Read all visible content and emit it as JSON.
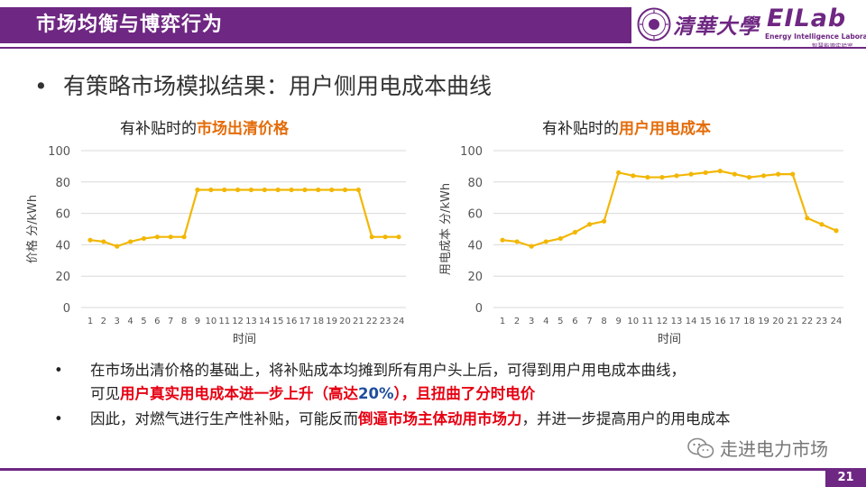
{
  "header": {
    "title": "市场均衡与博弈行为",
    "logo_text": "清華大學",
    "lab_logo": "EILab",
    "lab_name_en": "Energy Intelligence Laboratory",
    "lab_name_cn": "智慧能源实验室"
  },
  "main_bullet": "有策略市场模拟结果：用户侧用电成本曲线",
  "charts": [
    {
      "title_prefix": "有补贴时的",
      "title_highlight": "市场出清价格",
      "ylabel": "价格 分/kWh",
      "xlabel": "时间"
    },
    {
      "title_prefix": "有补贴时的",
      "title_highlight": "用户用电成本",
      "ylabel": "用电成本 分/kWh",
      "xlabel": "时间"
    }
  ],
  "chart_data": [
    {
      "type": "line",
      "x": [
        1,
        2,
        3,
        4,
        5,
        6,
        7,
        8,
        9,
        10,
        11,
        12,
        13,
        14,
        15,
        16,
        17,
        18,
        19,
        20,
        21,
        22,
        23,
        24
      ],
      "series": [
        {
          "values": [
            43,
            42,
            39,
            42,
            44,
            45,
            45,
            45,
            75,
            75,
            75,
            75,
            75,
            75,
            75,
            75,
            75,
            75,
            75,
            75,
            75,
            45,
            45,
            45
          ],
          "color": "#f2b705"
        }
      ],
      "ylim": [
        0,
        100
      ],
      "yticks": [
        0,
        20,
        40,
        60,
        80,
        100
      ],
      "grid": true,
      "title": "有补贴时的市场出清价格",
      "xlabel": "时间",
      "ylabel": "价格 分/kWh"
    },
    {
      "type": "line",
      "x": [
        1,
        2,
        3,
        4,
        5,
        6,
        7,
        8,
        9,
        10,
        11,
        12,
        13,
        14,
        15,
        16,
        17,
        18,
        19,
        20,
        21,
        22,
        23,
        24
      ],
      "series": [
        {
          "values": [
            43,
            42,
            39,
            42,
            44,
            48,
            53,
            55,
            86,
            84,
            83,
            83,
            84,
            85,
            86,
            87,
            85,
            83,
            84,
            85,
            85,
            57,
            53,
            49
          ],
          "color": "#f2b705"
        }
      ],
      "ylim": [
        0,
        100
      ],
      "yticks": [
        0,
        20,
        40,
        60,
        80,
        100
      ],
      "grid": true,
      "title": "有补贴时的用户用电成本",
      "xlabel": "时间",
      "ylabel": "用电成本 分/kWh"
    }
  ],
  "bullets": {
    "b1_a": "在市场出清价格的基础上，将补贴成本均摊到所有用户头上后，可得到用户用电成本曲线，",
    "b1_b": "可见",
    "b1_red1": "用户真实用电成本进一步上升（高达",
    "b1_blue": "20%",
    "b1_red2": "），且扭曲了分时电价",
    "b2_a": "因此，对燃气进行生产性补贴，可能反而",
    "b2_red": "倒逼市场主体动用市场力",
    "b2_b": "，并进一步提高用户的用电成本"
  },
  "watermark": "走进电力市场",
  "page_number": "21"
}
